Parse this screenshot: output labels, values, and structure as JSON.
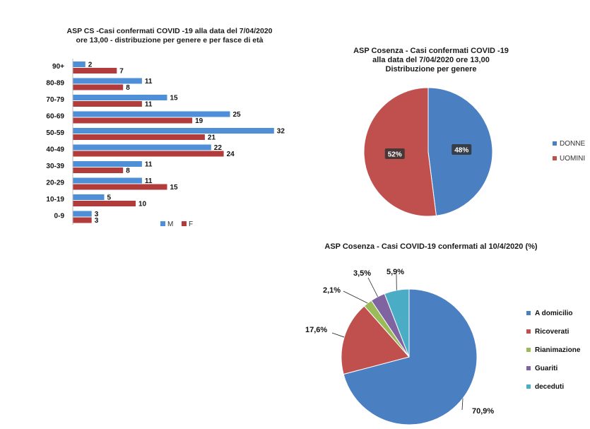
{
  "chart_data": [
    {
      "type": "bar",
      "orientation": "horizontal",
      "title": "ASP CS -Casi confermati COVID -19 alla data del  7/04/2020 ore 13,00 - distribuzione per genere e per fasce di età",
      "title_lines": [
        "ASP CS -Casi confermati COVID -19 alla data del  7/04/2020",
        "ore 13,00 - distribuzione per genere e per fasce di età"
      ],
      "categories": [
        "90+",
        "80-89",
        "70-79",
        "60-69",
        "50-59",
        "40-49",
        "30-39",
        "20-29",
        "10-19",
        "0-9"
      ],
      "series": [
        {
          "name": "M",
          "color": "#4e8fd8",
          "values": [
            2,
            11,
            15,
            25,
            32,
            22,
            11,
            11,
            5,
            3
          ]
        },
        {
          "name": "F",
          "color": "#b23b3b",
          "values": [
            7,
            8,
            11,
            19,
            21,
            24,
            8,
            15,
            10,
            3
          ]
        }
      ],
      "xlim": [
        0,
        35
      ],
      "legend": "bottom",
      "grid": false
    },
    {
      "type": "pie",
      "title": "ASP Cosenza - Casi confermati COVID -19 alla data del  7/04/2020  ore 13,00 Distribuzione per genere",
      "title_lines": [
        "ASP Cosenza - Casi confermati COVID -19",
        "alla data del  7/04/2020  ore 13,00",
        "Distribuzione per genere"
      ],
      "slices": [
        {
          "name": "DONNE",
          "value": 48,
          "label": "48%",
          "color": "#4a7fc1"
        },
        {
          "name": "UOMINI",
          "value": 52,
          "label": "52%",
          "color": "#c0504d"
        }
      ],
      "legend": "right"
    },
    {
      "type": "pie",
      "title": "ASP Cosenza - Casi COVID-19 confermati al 10/4/2020 (%)",
      "slices": [
        {
          "name": "A domicilio",
          "value": 70.9,
          "label": "70,9%",
          "color": "#4a7fc1"
        },
        {
          "name": "Ricoverati",
          "value": 17.6,
          "label": "17,6%",
          "color": "#c0504d"
        },
        {
          "name": "Rianimazione",
          "value": 2.1,
          "label": "2,1%",
          "color": "#9bbb59"
        },
        {
          "name": "Guariti",
          "value": 3.5,
          "label": "3,5%",
          "color": "#8064a2"
        },
        {
          "name": "deceduti",
          "value": 5.9,
          "label": "5,9%",
          "color": "#4bacc6"
        }
      ],
      "legend": "right"
    }
  ]
}
